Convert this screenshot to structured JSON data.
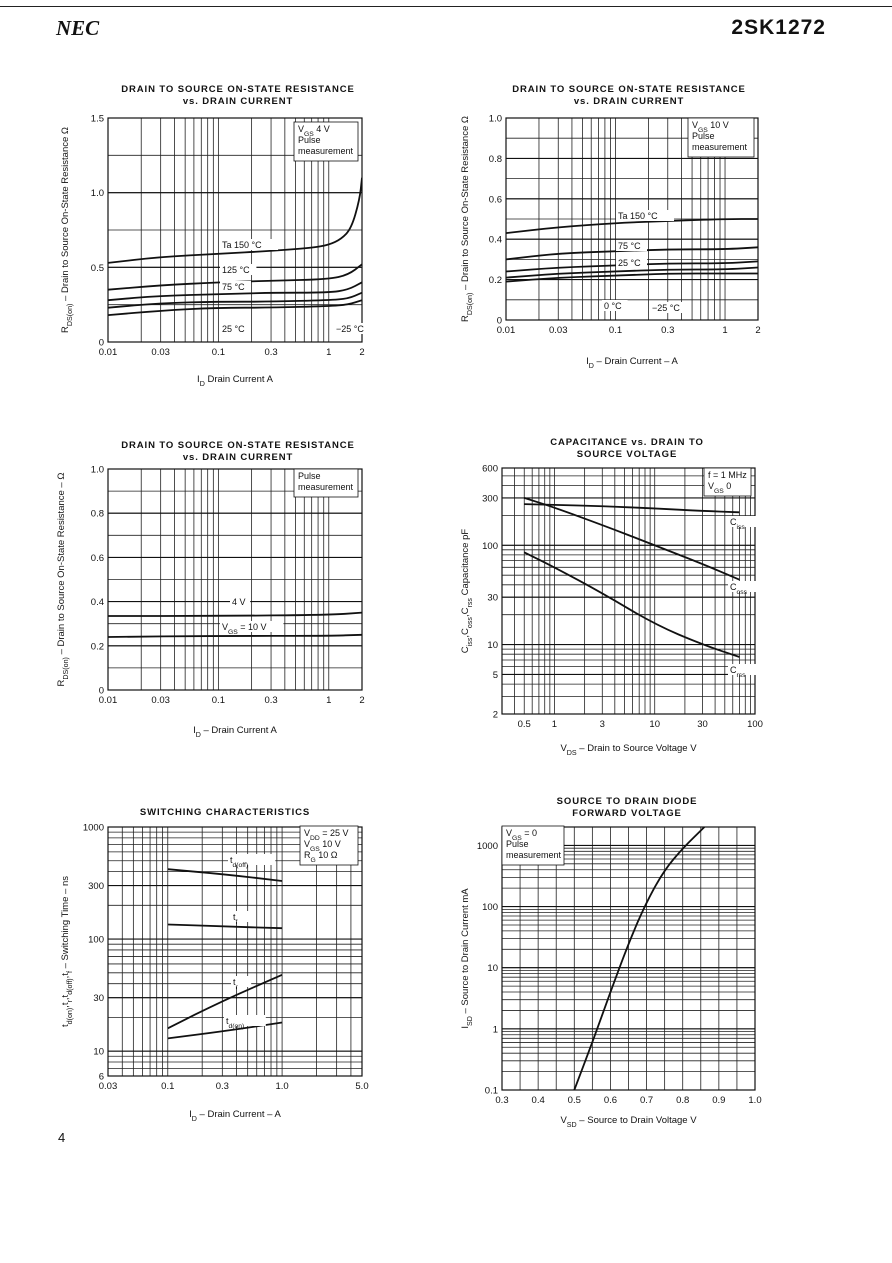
{
  "header": {
    "brand": "NEC",
    "part_number": "2SK1272"
  },
  "footer": {
    "page_number": "4"
  },
  "chart_data": [
    {
      "id": "c1",
      "type": "line",
      "xscale": "log",
      "yscale": "linear",
      "title": [
        "DRAIN TO SOURCE ON-STATE RESISTANCE",
        "vs. DRAIN CURRENT"
      ],
      "xlabel": "I_D  Drain Current  A",
      "ylabel": "R_DS(on) – Drain to Source On-State Resistance  Ω",
      "xlim": [
        0.01,
        2
      ],
      "ylim": [
        0,
        1.5
      ],
      "xticks": [
        0.01,
        0.03,
        0.1,
        0.3,
        1,
        2
      ],
      "xtick_labels": [
        "0.01",
        "0.03",
        "0.1",
        "0.3",
        "1",
        "2"
      ],
      "yticks": [
        0,
        0.5,
        1.0,
        1.5
      ],
      "ytick_labels": [
        "0",
        "0.5",
        "1.0",
        "1.5"
      ],
      "conditions": [
        "V_GS  4 V",
        "Pulse",
        "measurement"
      ],
      "series": [
        {
          "name": "Ta  150 °C",
          "x": [
            0.01,
            0.03,
            0.1,
            0.3,
            0.7,
            1.0,
            1.3,
            1.6,
            1.9,
            2.0
          ],
          "y": [
            0.53,
            0.57,
            0.59,
            0.61,
            0.63,
            0.65,
            0.69,
            0.76,
            0.95,
            1.1
          ]
        },
        {
          "name": "125 °C",
          "x": [
            0.01,
            0.03,
            0.1,
            0.3,
            1.0,
            1.5,
            2.0
          ],
          "y": [
            0.35,
            0.38,
            0.4,
            0.41,
            0.42,
            0.45,
            0.52
          ]
        },
        {
          "name": "75 °C",
          "x": [
            0.01,
            0.03,
            0.1,
            0.3,
            1.0,
            1.5,
            2.0
          ],
          "y": [
            0.28,
            0.31,
            0.32,
            0.33,
            0.33,
            0.35,
            0.4
          ]
        },
        {
          "name": "25 °C",
          "x": [
            0.01,
            0.03,
            0.1,
            0.3,
            1.0,
            1.5,
            2.0
          ],
          "y": [
            0.23,
            0.26,
            0.27,
            0.27,
            0.28,
            0.29,
            0.33
          ]
        },
        {
          "name": "−25 °C",
          "x": [
            0.01,
            0.03,
            0.1,
            0.3,
            1.0,
            1.5,
            2.0
          ],
          "y": [
            0.18,
            0.21,
            0.23,
            0.23,
            0.24,
            0.25,
            0.28
          ]
        }
      ],
      "curve_labels": [
        "Ta  150 °C",
        "125 °C",
        "75 °C",
        "25 °C",
        "−25 °C"
      ]
    },
    {
      "id": "c2",
      "type": "line",
      "xscale": "log",
      "yscale": "linear",
      "title": [
        "DRAIN TO SOURCE ON-STATE RESISTANCE",
        "vs. DRAIN CURRENT"
      ],
      "xlabel": "I_D – Drain Current – A",
      "ylabel": "R_DS(on) – Drain to Source On-State Resistance  Ω",
      "xlim": [
        0.01,
        2
      ],
      "ylim": [
        0,
        1.0
      ],
      "xticks": [
        0.01,
        0.03,
        0.1,
        0.3,
        1,
        2
      ],
      "xtick_labels": [
        "0.01",
        "0.03",
        "0.1",
        "0.3",
        "1",
        "2"
      ],
      "yticks": [
        0,
        0.2,
        0.4,
        0.6,
        0.8,
        1.0
      ],
      "ytick_labels": [
        "0",
        "0.2",
        "0.4",
        "0.6",
        "0.8",
        "1.0"
      ],
      "conditions": [
        "V_GS  10 V",
        "Pulse",
        "measurement"
      ],
      "series": [
        {
          "name": "Ta  150 °C",
          "x": [
            0.01,
            0.03,
            0.1,
            0.3,
            1,
            2
          ],
          "y": [
            0.43,
            0.46,
            0.48,
            0.49,
            0.5,
            0.5
          ]
        },
        {
          "name": "75 °C",
          "x": [
            0.01,
            0.03,
            0.1,
            0.3,
            1,
            2
          ],
          "y": [
            0.3,
            0.33,
            0.34,
            0.35,
            0.35,
            0.36
          ]
        },
        {
          "name": "25 °C",
          "x": [
            0.01,
            0.03,
            0.1,
            0.3,
            1,
            2
          ],
          "y": [
            0.24,
            0.26,
            0.27,
            0.28,
            0.28,
            0.29
          ]
        },
        {
          "name": "0 °C",
          "x": [
            0.01,
            0.03,
            0.1,
            0.3,
            1,
            2
          ],
          "y": [
            0.21,
            0.23,
            0.24,
            0.25,
            0.25,
            0.26
          ]
        },
        {
          "name": "−25 °C",
          "x": [
            0.01,
            0.03,
            0.1,
            0.3,
            1,
            2
          ],
          "y": [
            0.19,
            0.21,
            0.22,
            0.23,
            0.23,
            0.23
          ]
        }
      ],
      "curve_labels": [
        "Ta  150 °C",
        "75 °C",
        "25 °C",
        "0 °C",
        "−25 °C"
      ]
    },
    {
      "id": "c3",
      "type": "line",
      "xscale": "log",
      "yscale": "linear",
      "title": [
        "DRAIN TO SOURCE ON-STATE RESISTANCE",
        "vs. DRAIN CURRENT"
      ],
      "xlabel": "I_D – Drain Current  A",
      "ylabel": "R_DS(on) – Drain to Source On-State Resistance – Ω",
      "xlim": [
        0.01,
        2
      ],
      "ylim": [
        0,
        1.0
      ],
      "xticks": [
        0.01,
        0.03,
        0.1,
        0.3,
        1,
        2
      ],
      "xtick_labels": [
        "0.01",
        "0.03",
        "0.1",
        "0.3",
        "1",
        "2"
      ],
      "yticks": [
        0,
        0.2,
        0.4,
        0.6,
        0.8,
        1.0
      ],
      "ytick_labels": [
        "0",
        "0.2",
        "0.4",
        "0.6",
        "0.8",
        "1.0"
      ],
      "conditions": [
        "Pulse",
        "measurement"
      ],
      "series": [
        {
          "name": "4 V",
          "x": [
            0.01,
            0.1,
            1,
            2
          ],
          "y": [
            0.335,
            0.335,
            0.34,
            0.35
          ]
        },
        {
          "name": "V_GS = 10 V",
          "x": [
            0.01,
            0.1,
            1,
            2
          ],
          "y": [
            0.24,
            0.245,
            0.245,
            0.25
          ]
        }
      ],
      "curve_labels": [
        "4 V",
        "V_GS = 10 V"
      ]
    },
    {
      "id": "c4",
      "type": "line",
      "xscale": "log",
      "yscale": "log",
      "title": [
        "CAPACITANCE vs. DRAIN TO",
        "SOURCE VOLTAGE"
      ],
      "xlabel": "V_DS – Drain to Source Voltage  V",
      "ylabel": "C_iss,C_oss,C_rss  Capacitance  pF",
      "xlim": [
        0.3,
        100
      ],
      "ylim": [
        2,
        600
      ],
      "xticks": [
        0.5,
        1,
        3,
        10,
        30,
        100
      ],
      "xtick_labels": [
        "0.5",
        "1",
        "3",
        "10",
        "30",
        "100"
      ],
      "yticks": [
        2,
        5,
        10,
        30,
        100,
        300,
        600
      ],
      "ytick_labels": [
        "2",
        "5",
        "10",
        "30",
        "100",
        "300",
        "600"
      ],
      "conditions": [
        "f = 1 MHz",
        "V_GS   0"
      ],
      "series": [
        {
          "name": "C_iss",
          "x": [
            0.5,
            1,
            3,
            10,
            30,
            70
          ],
          "y": [
            260,
            255,
            248,
            235,
            222,
            215
          ]
        },
        {
          "name": "C_oss",
          "x": [
            0.5,
            1,
            3,
            10,
            30,
            70
          ],
          "y": [
            300,
            240,
            160,
            100,
            65,
            45
          ]
        },
        {
          "name": "C_rss",
          "x": [
            0.5,
            1,
            3,
            10,
            30,
            70
          ],
          "y": [
            85,
            60,
            33,
            16,
            10,
            7.5
          ]
        }
      ],
      "curve_labels": [
        "C_iss",
        "C_oss",
        "C_rss"
      ]
    },
    {
      "id": "c5",
      "type": "line",
      "xscale": "log",
      "yscale": "log",
      "title": [
        "SWITCHING CHARACTERISTICS"
      ],
      "xlabel": "I_D – Drain Current – A",
      "ylabel": "t_d(on),t_r,t_d(off),t_f – Switching Time – ns",
      "xlim": [
        0.03,
        5.0
      ],
      "ylim": [
        6,
        1000
      ],
      "xticks": [
        0.03,
        0.1,
        0.3,
        1.0,
        5.0
      ],
      "xtick_labels": [
        "0.03",
        "0.1",
        "0.3",
        "1.0",
        "5.0"
      ],
      "yticks": [
        6,
        10,
        30,
        100,
        300,
        1000
      ],
      "ytick_labels": [
        "6",
        "10",
        "30",
        "100",
        "300",
        "1000"
      ],
      "conditions": [
        "V_DD = 25 V",
        "V_GS   10 V",
        "R_G   10 Ω"
      ],
      "series": [
        {
          "name": "t_d(off)",
          "x": [
            0.1,
            0.3,
            1.0
          ],
          "y": [
            420,
            380,
            330
          ]
        },
        {
          "name": "t_f",
          "x": [
            0.1,
            0.3,
            1.0
          ],
          "y": [
            135,
            130,
            125
          ]
        },
        {
          "name": "t_r",
          "x": [
            0.1,
            0.3,
            1.0
          ],
          "y": [
            16,
            28,
            48
          ]
        },
        {
          "name": "t_d(on)",
          "x": [
            0.1,
            0.3,
            1.0
          ],
          "y": [
            13,
            15,
            18
          ]
        }
      ],
      "curve_labels": [
        "t_d(off)",
        "t_f",
        "t_r",
        "t_d(on)"
      ]
    },
    {
      "id": "c6",
      "type": "line",
      "xscale": "linear",
      "yscale": "log",
      "title": [
        "SOURCE TO DRAIN DIODE",
        "FORWARD VOLTAGE"
      ],
      "xlabel": "V_SD – Source to Drain Voltage  V",
      "ylabel": "I_SD – Source to Drain Current  mA",
      "xlim": [
        0.3,
        1.0
      ],
      "ylim": [
        0.1,
        2000
      ],
      "xticks": [
        0.3,
        0.4,
        0.5,
        0.6,
        0.7,
        0.8,
        0.9,
        1.0
      ],
      "xtick_labels": [
        "0.3",
        "0.4",
        "0.5",
        "0.6",
        "0.7",
        "0.8",
        "0.9",
        "1.0"
      ],
      "yticks": [
        0.1,
        1,
        10,
        100,
        1000
      ],
      "ytick_labels": [
        "0.1",
        "1",
        "10",
        "100",
        "1000"
      ],
      "conditions": [
        "V_GS = 0",
        "Pulse",
        "measurement"
      ],
      "series": [
        {
          "name": "I_SD",
          "x": [
            0.5,
            0.55,
            0.6,
            0.65,
            0.7,
            0.75,
            0.8,
            0.86
          ],
          "y": [
            0.1,
            0.6,
            4,
            25,
            120,
            400,
            900,
            2000
          ]
        }
      ],
      "curve_labels": []
    }
  ]
}
